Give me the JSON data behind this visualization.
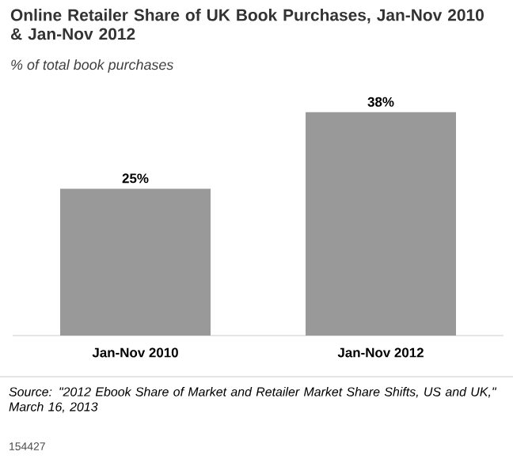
{
  "chart_data": {
    "type": "bar",
    "title": "Online Retailer Share of UK Book Purchases, Jan-Nov 2010 & Jan-Nov 2012",
    "subtitle": "% of total book purchases",
    "categories": [
      "Jan-Nov 2010",
      "Jan-Nov 2012"
    ],
    "values": [
      25,
      38
    ],
    "value_labels": [
      "25%",
      "38%"
    ],
    "color": "#999999",
    "annotations": [
      "Source: \"2012 Ebook Share of Market and Retailer Market Share Shifts, US and UK,\" March 16, 2013",
      "154427"
    ]
  }
}
